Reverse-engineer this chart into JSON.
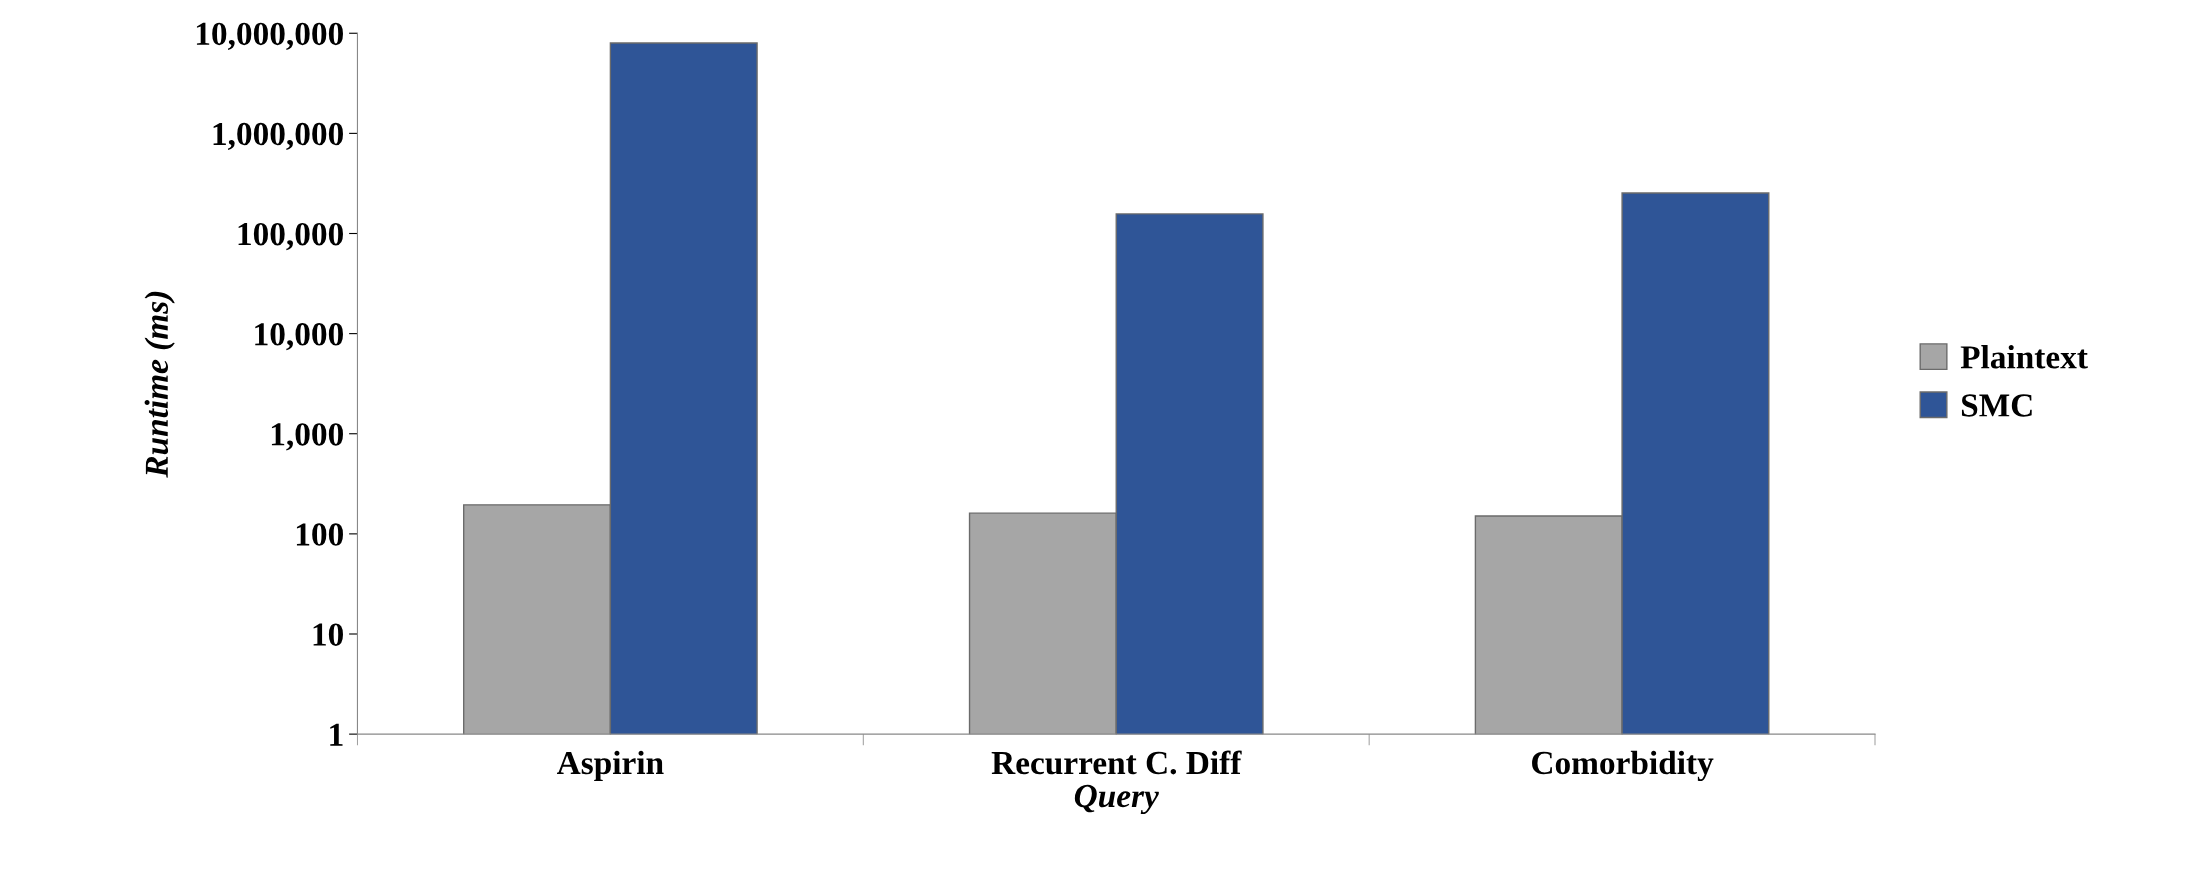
{
  "chart_data": {
    "type": "bar",
    "log": true,
    "xlabel": "Query",
    "ylabel": "Runtime (ms)",
    "categories": [
      "Aspirin",
      "Recurrent C. Diff",
      "Comorbidity"
    ],
    "series": [
      {
        "name": "Plaintext",
        "color": "#a6a6a6",
        "values": [
          195,
          161,
          151
        ]
      },
      {
        "name": "SMC",
        "color": "#2f5597",
        "values": [
          8000000,
          157000,
          254000
        ]
      }
    ],
    "ylim": [
      1,
      10000000
    ],
    "yticks": [
      {
        "value": 1,
        "label": "1"
      },
      {
        "value": 10,
        "label": "10"
      },
      {
        "value": 100,
        "label": "100"
      },
      {
        "value": 1000,
        "label": "1,000"
      },
      {
        "value": 10000,
        "label": "10,000"
      },
      {
        "value": 100000,
        "label": "100,000"
      },
      {
        "value": 1000000,
        "label": "1,000,000"
      },
      {
        "value": 10000000,
        "label": "10,000,000"
      }
    ],
    "grid": false,
    "legend": "right"
  }
}
